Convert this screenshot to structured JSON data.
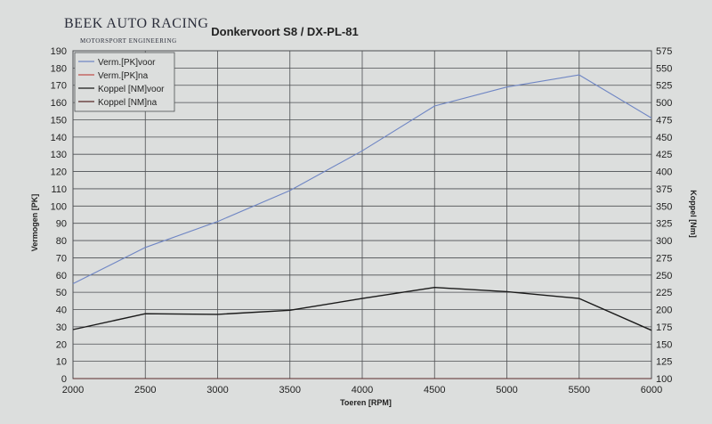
{
  "brand": {
    "name": "BEEK AUTO RACING",
    "tagline": "MOTORSPORT ENGINEERING"
  },
  "colors": {
    "background": "#dcdedd",
    "grid": "#4d4f52",
    "power_before": "#6f86c4",
    "power_after": "#c0504d",
    "torque_before": "#1a1a1a",
    "torque_after": "#5a2a2a"
  },
  "chart_data": {
    "type": "line",
    "title": "Donkervoort S8 / DX-PL-81",
    "xlabel": "Toeren [RPM]",
    "ylabel_left": "Vermogen [PK]",
    "ylabel_right": "Koppel [Nm]",
    "xlim": [
      2000,
      6000
    ],
    "ylim_left": [
      0,
      190
    ],
    "ylim_right": [
      100,
      575
    ],
    "x_ticks": [
      2000,
      2500,
      3000,
      3500,
      4000,
      4500,
      5000,
      5500,
      6000
    ],
    "y_ticks_left": [
      0,
      10,
      20,
      30,
      40,
      50,
      60,
      70,
      80,
      90,
      100,
      110,
      120,
      130,
      140,
      150,
      160,
      170,
      180,
      190
    ],
    "y_ticks_right": [
      100,
      125,
      150,
      175,
      200,
      225,
      250,
      275,
      300,
      325,
      350,
      375,
      400,
      425,
      450,
      475,
      500,
      525,
      550,
      575
    ],
    "grid": true,
    "legend_position": "top-left",
    "series": [
      {
        "name": "Verm.[PK]voor",
        "axis": "left",
        "x": [
          2000,
          2500,
          3000,
          3500,
          4000,
          4500,
          5000,
          5500,
          6000
        ],
        "y": [
          55,
          76,
          91,
          109,
          132,
          158,
          169,
          176,
          151
        ]
      },
      {
        "name": "Verm.[PK]na",
        "axis": "left",
        "x": [
          2000,
          6000
        ],
        "y": [
          0,
          0
        ]
      },
      {
        "name": "Koppel [NM]voor",
        "axis": "right",
        "x": [
          2000,
          2500,
          3000,
          3500,
          4000,
          4500,
          5000,
          5500,
          6000
        ],
        "y": [
          171,
          194,
          193,
          199,
          216,
          232,
          226,
          216,
          170
        ]
      },
      {
        "name": "Koppel [NM]na",
        "axis": "right",
        "x": [
          2000,
          6000
        ],
        "y": [
          100,
          100
        ]
      }
    ]
  }
}
